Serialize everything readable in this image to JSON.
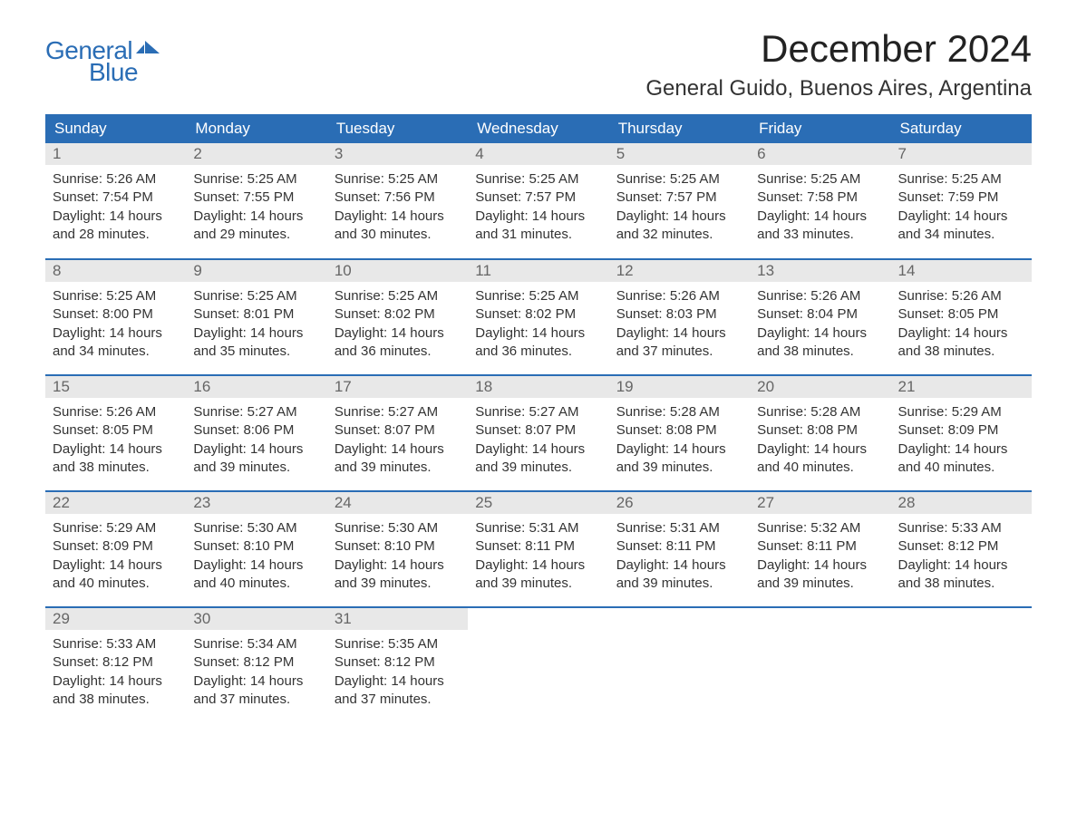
{
  "logo": {
    "text_top": "General",
    "text_bottom": "Blue",
    "brand_color": "#2a6db5"
  },
  "title": "December 2024",
  "location": "General Guido, Buenos Aires, Argentina",
  "colors": {
    "header_bg": "#2a6db5",
    "header_text": "#ffffff",
    "daynum_bg": "#e8e8e8",
    "daynum_text": "#666666",
    "body_text": "#333333",
    "week_divider": "#2a6db5",
    "page_bg": "#ffffff"
  },
  "typography": {
    "title_fontsize": 42,
    "location_fontsize": 24,
    "weekday_fontsize": 17,
    "daynum_fontsize": 17,
    "body_fontsize": 15,
    "font_family": "Arial"
  },
  "weekdays": [
    "Sunday",
    "Monday",
    "Tuesday",
    "Wednesday",
    "Thursday",
    "Friday",
    "Saturday"
  ],
  "labels": {
    "sunrise": "Sunrise:",
    "sunset": "Sunset:",
    "daylight_prefix": "Daylight:",
    "daylight_hours_word": "hours",
    "daylight_and": "and",
    "daylight_minutes_word": "minutes."
  },
  "weeks": [
    [
      {
        "day": "1",
        "sunrise": "5:26 AM",
        "sunset": "7:54 PM",
        "dl_h": "14",
        "dl_m": "28"
      },
      {
        "day": "2",
        "sunrise": "5:25 AM",
        "sunset": "7:55 PM",
        "dl_h": "14",
        "dl_m": "29"
      },
      {
        "day": "3",
        "sunrise": "5:25 AM",
        "sunset": "7:56 PM",
        "dl_h": "14",
        "dl_m": "30"
      },
      {
        "day": "4",
        "sunrise": "5:25 AM",
        "sunset": "7:57 PM",
        "dl_h": "14",
        "dl_m": "31"
      },
      {
        "day": "5",
        "sunrise": "5:25 AM",
        "sunset": "7:57 PM",
        "dl_h": "14",
        "dl_m": "32"
      },
      {
        "day": "6",
        "sunrise": "5:25 AM",
        "sunset": "7:58 PM",
        "dl_h": "14",
        "dl_m": "33"
      },
      {
        "day": "7",
        "sunrise": "5:25 AM",
        "sunset": "7:59 PM",
        "dl_h": "14",
        "dl_m": "34"
      }
    ],
    [
      {
        "day": "8",
        "sunrise": "5:25 AM",
        "sunset": "8:00 PM",
        "dl_h": "14",
        "dl_m": "34"
      },
      {
        "day": "9",
        "sunrise": "5:25 AM",
        "sunset": "8:01 PM",
        "dl_h": "14",
        "dl_m": "35"
      },
      {
        "day": "10",
        "sunrise": "5:25 AM",
        "sunset": "8:02 PM",
        "dl_h": "14",
        "dl_m": "36"
      },
      {
        "day": "11",
        "sunrise": "5:25 AM",
        "sunset": "8:02 PM",
        "dl_h": "14",
        "dl_m": "36"
      },
      {
        "day": "12",
        "sunrise": "5:26 AM",
        "sunset": "8:03 PM",
        "dl_h": "14",
        "dl_m": "37"
      },
      {
        "day": "13",
        "sunrise": "5:26 AM",
        "sunset": "8:04 PM",
        "dl_h": "14",
        "dl_m": "38"
      },
      {
        "day": "14",
        "sunrise": "5:26 AM",
        "sunset": "8:05 PM",
        "dl_h": "14",
        "dl_m": "38"
      }
    ],
    [
      {
        "day": "15",
        "sunrise": "5:26 AM",
        "sunset": "8:05 PM",
        "dl_h": "14",
        "dl_m": "38"
      },
      {
        "day": "16",
        "sunrise": "5:27 AM",
        "sunset": "8:06 PM",
        "dl_h": "14",
        "dl_m": "39"
      },
      {
        "day": "17",
        "sunrise": "5:27 AM",
        "sunset": "8:07 PM",
        "dl_h": "14",
        "dl_m": "39"
      },
      {
        "day": "18",
        "sunrise": "5:27 AM",
        "sunset": "8:07 PM",
        "dl_h": "14",
        "dl_m": "39"
      },
      {
        "day": "19",
        "sunrise": "5:28 AM",
        "sunset": "8:08 PM",
        "dl_h": "14",
        "dl_m": "39"
      },
      {
        "day": "20",
        "sunrise": "5:28 AM",
        "sunset": "8:08 PM",
        "dl_h": "14",
        "dl_m": "40"
      },
      {
        "day": "21",
        "sunrise": "5:29 AM",
        "sunset": "8:09 PM",
        "dl_h": "14",
        "dl_m": "40"
      }
    ],
    [
      {
        "day": "22",
        "sunrise": "5:29 AM",
        "sunset": "8:09 PM",
        "dl_h": "14",
        "dl_m": "40"
      },
      {
        "day": "23",
        "sunrise": "5:30 AM",
        "sunset": "8:10 PM",
        "dl_h": "14",
        "dl_m": "40"
      },
      {
        "day": "24",
        "sunrise": "5:30 AM",
        "sunset": "8:10 PM",
        "dl_h": "14",
        "dl_m": "39"
      },
      {
        "day": "25",
        "sunrise": "5:31 AM",
        "sunset": "8:11 PM",
        "dl_h": "14",
        "dl_m": "39"
      },
      {
        "day": "26",
        "sunrise": "5:31 AM",
        "sunset": "8:11 PM",
        "dl_h": "14",
        "dl_m": "39"
      },
      {
        "day": "27",
        "sunrise": "5:32 AM",
        "sunset": "8:11 PM",
        "dl_h": "14",
        "dl_m": "39"
      },
      {
        "day": "28",
        "sunrise": "5:33 AM",
        "sunset": "8:12 PM",
        "dl_h": "14",
        "dl_m": "38"
      }
    ],
    [
      {
        "day": "29",
        "sunrise": "5:33 AM",
        "sunset": "8:12 PM",
        "dl_h": "14",
        "dl_m": "38"
      },
      {
        "day": "30",
        "sunrise": "5:34 AM",
        "sunset": "8:12 PM",
        "dl_h": "14",
        "dl_m": "37"
      },
      {
        "day": "31",
        "sunrise": "5:35 AM",
        "sunset": "8:12 PM",
        "dl_h": "14",
        "dl_m": "37"
      },
      null,
      null,
      null,
      null
    ]
  ]
}
